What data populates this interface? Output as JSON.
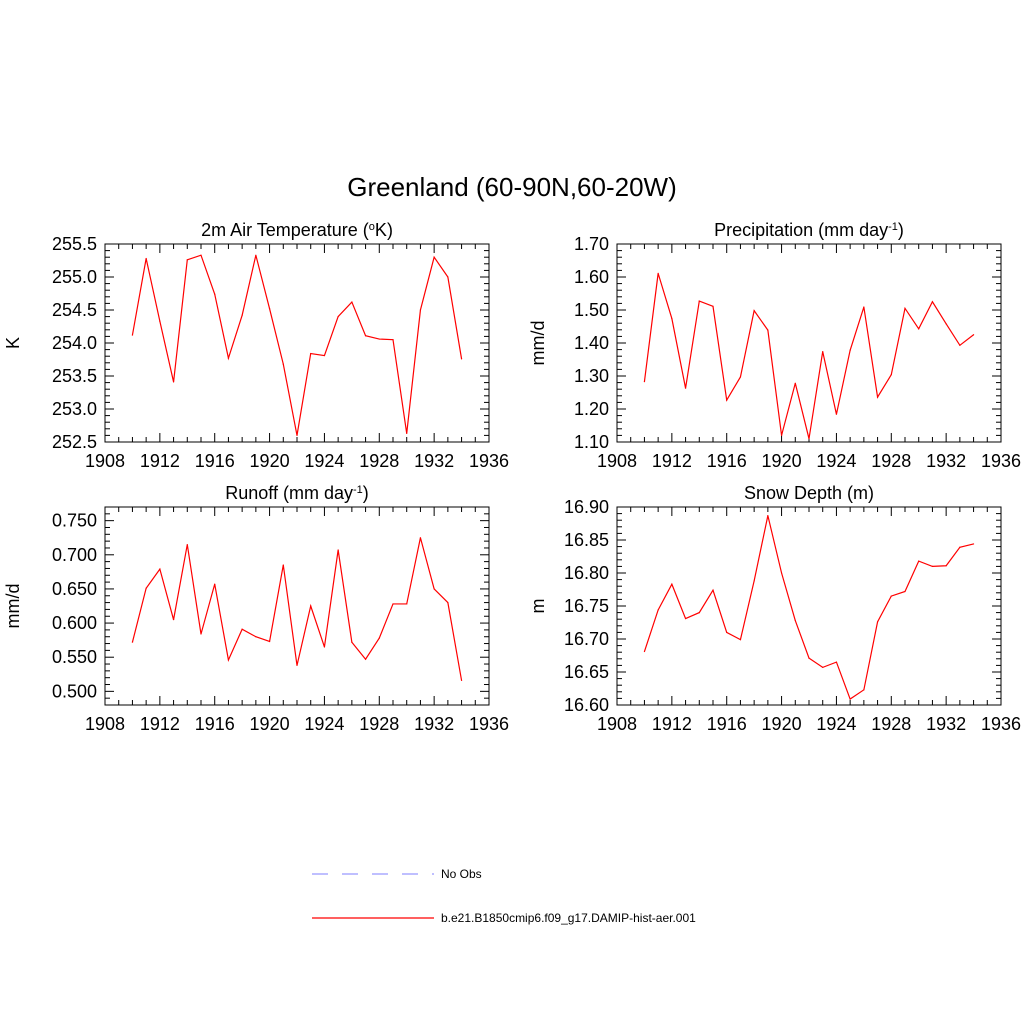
{
  "figure": {
    "title": "Greenland (60-90N,60-20W)"
  },
  "colors": {
    "model_line": "#ff0000",
    "obs_line": "#9999ff",
    "axis": "#000000"
  },
  "legend": {
    "placement": "bottom-center",
    "entries": [
      {
        "label": "No Obs",
        "style": "dashed",
        "color": "#9999ff"
      },
      {
        "label": "b.e21.B1850cmip6.f09_g17.DAMIP-hist-aer.001",
        "style": "solid",
        "color": "#ff0000"
      }
    ]
  },
  "chart_data": [
    {
      "type": "line",
      "title_main": "2m Air Temperature (",
      "title_sup_pre": "o",
      "title_mid": "K",
      "title_sup_post": "",
      "title_end": ")",
      "ylabel": "K",
      "xlim": [
        1908,
        1936
      ],
      "xticks": [
        "1908",
        "1912",
        "1916",
        "1920",
        "1924",
        "1928",
        "1932",
        "1936"
      ],
      "ylim": [
        252.5,
        255.5
      ],
      "yticks": [
        "252.5",
        "253.0",
        "253.5",
        "254.0",
        "254.5",
        "255.0",
        "255.5"
      ],
      "grid": false,
      "x": [
        1910,
        1911,
        1912,
        1913,
        1914,
        1915,
        1916,
        1917,
        1918,
        1919,
        1920,
        1921,
        1922,
        1923,
        1924,
        1925,
        1926,
        1927,
        1928,
        1929,
        1930,
        1931,
        1932,
        1933,
        1934
      ],
      "values": [
        254.12,
        255.28,
        254.33,
        253.41,
        255.26,
        255.33,
        254.74,
        253.77,
        254.42,
        255.33,
        254.52,
        253.68,
        252.6,
        253.84,
        253.81,
        254.4,
        254.62,
        254.11,
        254.06,
        254.05,
        252.63,
        254.5,
        255.3,
        255.0,
        253.76
      ]
    },
    {
      "type": "line",
      "title_main": "Precipitation (mm day",
      "title_sup_pre": "",
      "title_mid": "",
      "title_sup_post": "-1",
      "title_end": ")",
      "ylabel": "mm/d",
      "xlim": [
        1908,
        1936
      ],
      "xticks": [
        "1908",
        "1912",
        "1916",
        "1920",
        "1924",
        "1928",
        "1932",
        "1936"
      ],
      "ylim": [
        1.1,
        1.7
      ],
      "yticks": [
        "1.10",
        "1.20",
        "1.30",
        "1.40",
        "1.50",
        "1.60",
        "1.70"
      ],
      "grid": false,
      "x": [
        1910,
        1911,
        1912,
        1913,
        1914,
        1915,
        1916,
        1917,
        1918,
        1919,
        1920,
        1921,
        1922,
        1923,
        1924,
        1925,
        1926,
        1927,
        1928,
        1929,
        1930,
        1931,
        1932,
        1933,
        1934
      ],
      "values": [
        1.283,
        1.611,
        1.474,
        1.263,
        1.527,
        1.511,
        1.227,
        1.297,
        1.498,
        1.439,
        1.12,
        1.278,
        1.11,
        1.374,
        1.184,
        1.378,
        1.509,
        1.236,
        1.304,
        1.505,
        1.443,
        1.525,
        1.458,
        1.393,
        1.425
      ]
    },
    {
      "type": "line",
      "title_main": "Runoff (mm day",
      "title_sup_pre": "",
      "title_mid": "",
      "title_sup_post": "-1",
      "title_end": ")",
      "ylabel": "mm/d",
      "xlim": [
        1908,
        1936
      ],
      "xticks": [
        "1908",
        "1912",
        "1916",
        "1920",
        "1924",
        "1928",
        "1932",
        "1936"
      ],
      "ylim": [
        0.48,
        0.77
      ],
      "yticks": [
        "0.500",
        "0.550",
        "0.600",
        "0.650",
        "0.700",
        "0.750"
      ],
      "ytick_values": [
        0.5,
        0.55,
        0.6,
        0.65,
        0.7,
        0.75
      ],
      "grid": false,
      "x": [
        1910,
        1911,
        1912,
        1913,
        1914,
        1915,
        1916,
        1917,
        1918,
        1919,
        1920,
        1921,
        1922,
        1923,
        1924,
        1925,
        1926,
        1927,
        1928,
        1929,
        1930,
        1931,
        1932,
        1933,
        1934
      ],
      "values": [
        0.572,
        0.651,
        0.679,
        0.605,
        0.715,
        0.584,
        0.657,
        0.546,
        0.591,
        0.58,
        0.573,
        0.685,
        0.538,
        0.625,
        0.565,
        0.707,
        0.572,
        0.547,
        0.578,
        0.628,
        0.628,
        0.725,
        0.65,
        0.63,
        0.516
      ]
    },
    {
      "type": "line",
      "title_main": "Snow Depth (m)",
      "title_sup_pre": "",
      "title_mid": "",
      "title_sup_post": "",
      "title_end": "",
      "ylabel": "m",
      "xlim": [
        1908,
        1936
      ],
      "xticks": [
        "1908",
        "1912",
        "1916",
        "1920",
        "1924",
        "1928",
        "1932",
        "1936"
      ],
      "ylim": [
        16.6,
        16.9
      ],
      "yticks": [
        "16.60",
        "16.65",
        "16.70",
        "16.75",
        "16.80",
        "16.85",
        "16.90"
      ],
      "grid": false,
      "x": [
        1910,
        1911,
        1912,
        1913,
        1914,
        1915,
        1916,
        1917,
        1918,
        1919,
        1920,
        1921,
        1922,
        1923,
        1924,
        1925,
        1926,
        1927,
        1928,
        1929,
        1930,
        1931,
        1932,
        1933,
        1934
      ],
      "values": [
        16.681,
        16.744,
        16.783,
        16.731,
        16.74,
        16.774,
        16.71,
        16.699,
        16.788,
        16.887,
        16.8,
        16.728,
        16.671,
        16.657,
        16.665,
        16.609,
        16.623,
        16.726,
        16.765,
        16.772,
        16.818,
        16.81,
        16.811,
        16.839,
        16.844
      ]
    }
  ]
}
